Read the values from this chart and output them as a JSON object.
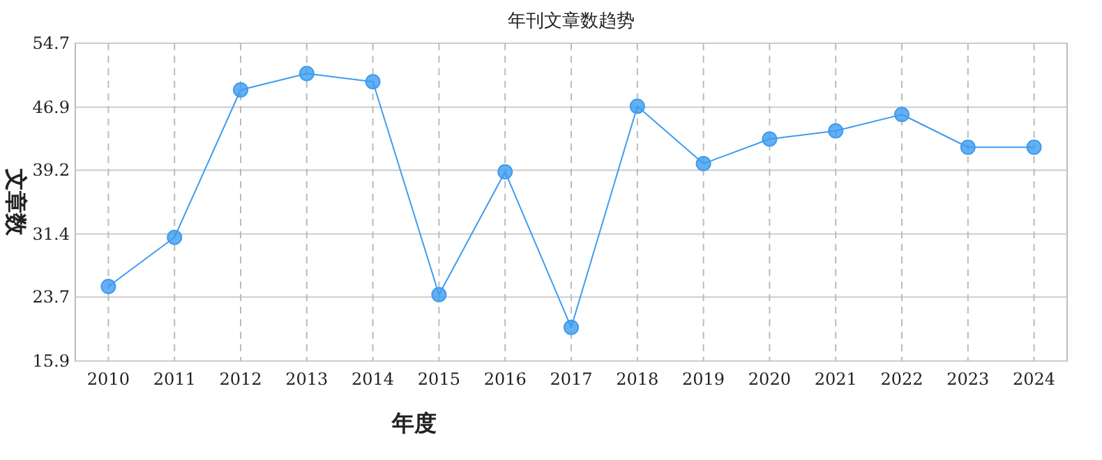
{
  "chart_data": {
    "type": "line",
    "title": "年刊文章数趋势",
    "xlabel": "年度",
    "ylabel": "文章数",
    "categories": [
      "2010",
      "2011",
      "2012",
      "2013",
      "2014",
      "2015",
      "2016",
      "2017",
      "2018",
      "2019",
      "2020",
      "2021",
      "2022",
      "2023",
      "2024"
    ],
    "series": [
      {
        "color": "#3d9cf0",
        "values": [
          25,
          31,
          49,
          51,
          50,
          24,
          39,
          20,
          47,
          40,
          43,
          44,
          46,
          42,
          42
        ]
      }
    ],
    "ylim": [
      15.9,
      54.7
    ],
    "yticks": [
      15.9,
      23.7,
      31.4,
      39.2,
      46.9,
      54.7
    ],
    "grid": true,
    "marker": "circle"
  }
}
